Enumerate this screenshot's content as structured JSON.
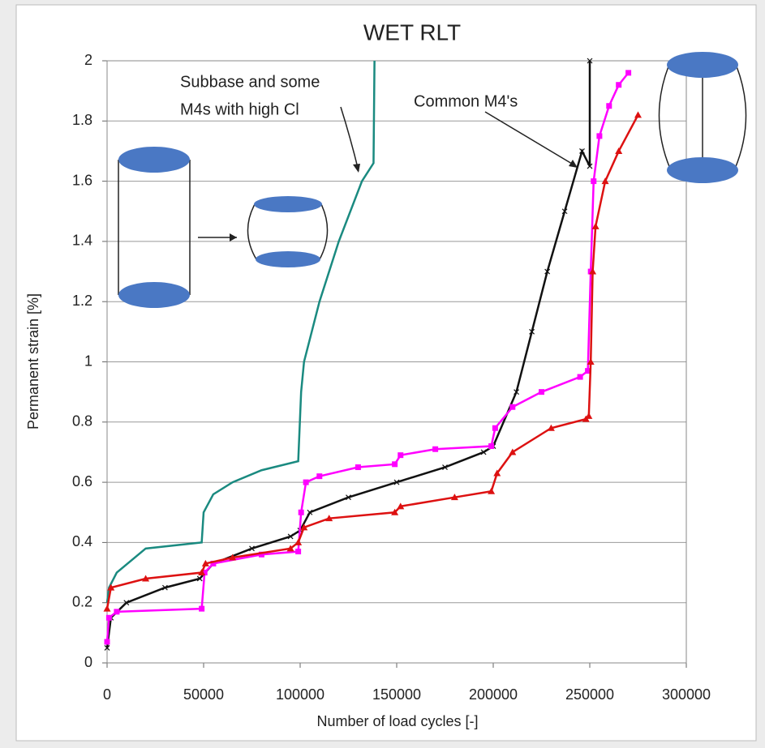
{
  "chart_data": {
    "type": "line",
    "title": "WET RLT",
    "x_label": "Number of load cycles [-]",
    "y_label": "Permanent strain [%]",
    "xlim": [
      0,
      300000
    ],
    "ylim": [
      0,
      2
    ],
    "xticks": [
      0,
      50000,
      100000,
      150000,
      200000,
      250000,
      300000
    ],
    "yticks": [
      0,
      0.2,
      0.4,
      0.6,
      0.8,
      1,
      1.2,
      1.4,
      1.6,
      1.8,
      2
    ],
    "grid": true,
    "annotations": [
      {
        "lines": [
          "Subbase and some",
          "M4s with high Cl"
        ]
      },
      {
        "lines": [
          "Common M4's"
        ]
      }
    ],
    "series": [
      {
        "color": "#1a8a80",
        "marker": "none",
        "x": [
          0,
          1000,
          5000,
          20000,
          49000,
          50000,
          55000,
          65000,
          80000,
          99000,
          100500,
          102000,
          110000,
          120000,
          132000,
          138000,
          138500
        ],
        "values": [
          0.2,
          0.25,
          0.3,
          0.38,
          0.4,
          0.5,
          0.56,
          0.6,
          0.64,
          0.67,
          0.9,
          1.0,
          1.2,
          1.4,
          1.6,
          1.66,
          2.0
        ]
      },
      {
        "color": "#111111",
        "marker": "x",
        "x": [
          0,
          2000,
          10000,
          30000,
          48000,
          55000,
          75000,
          95000,
          100000,
          105000,
          125000,
          150000,
          175000,
          195000,
          200000,
          212000,
          220000,
          228000,
          237000,
          246000,
          250000,
          250000
        ],
        "values": [
          0.05,
          0.15,
          0.2,
          0.25,
          0.28,
          0.33,
          0.38,
          0.42,
          0.44,
          0.5,
          0.55,
          0.6,
          0.65,
          0.7,
          0.72,
          0.9,
          1.1,
          1.3,
          1.5,
          1.7,
          1.65,
          2.0
        ]
      },
      {
        "color": "#ff00ff",
        "marker": "square",
        "x": [
          0,
          1000,
          5000,
          49000,
          50500,
          55000,
          80000,
          99000,
          100500,
          103000,
          110000,
          130000,
          149000,
          152000,
          170000,
          199000,
          201000,
          210000,
          225000,
          245000,
          249000,
          250500,
          252000,
          255000,
          260000,
          265000,
          270000
        ],
        "values": [
          0.07,
          0.15,
          0.17,
          0.18,
          0.3,
          0.33,
          0.36,
          0.37,
          0.5,
          0.6,
          0.62,
          0.65,
          0.66,
          0.69,
          0.71,
          0.72,
          0.78,
          0.85,
          0.9,
          0.95,
          0.97,
          1.3,
          1.6,
          1.75,
          1.85,
          1.92,
          1.96
        ]
      },
      {
        "color": "#dd1111",
        "marker": "triangle",
        "x": [
          0,
          2000,
          20000,
          49000,
          51000,
          65000,
          95000,
          99000,
          102000,
          115000,
          149000,
          152000,
          180000,
          199000,
          202000,
          210000,
          230000,
          248000,
          249500,
          250500,
          251500,
          253000,
          258000,
          265000,
          275000
        ],
        "values": [
          0.18,
          0.25,
          0.28,
          0.3,
          0.33,
          0.35,
          0.38,
          0.4,
          0.45,
          0.48,
          0.5,
          0.52,
          0.55,
          0.57,
          0.63,
          0.7,
          0.78,
          0.81,
          0.82,
          1.0,
          1.3,
          1.45,
          1.6,
          1.7,
          1.82
        ]
      }
    ]
  }
}
